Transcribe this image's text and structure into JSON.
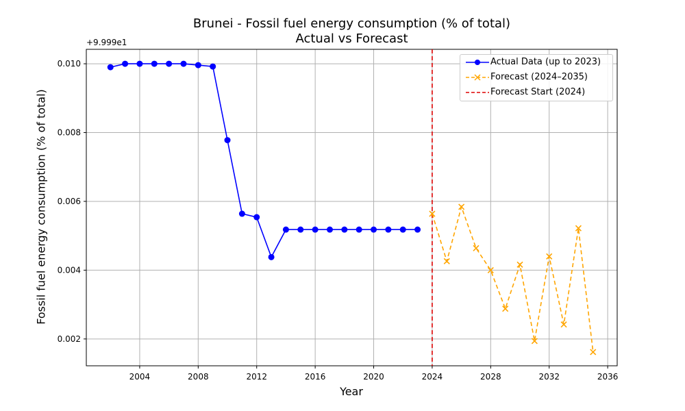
{
  "chart_data": {
    "type": "line",
    "title": "Brunei - Fossil fuel energy consumption (% of total)",
    "subtitle": "Actual vs Forecast",
    "xlabel": "Year",
    "ylabel": "Fossil fuel energy consumption (% of total)",
    "y_offset_label": "+9.999e1",
    "xlim": [
      2000.35,
      2036.65
    ],
    "ylim": [
      0.00122,
      0.01042
    ],
    "x_ticks": [
      2004,
      2008,
      2012,
      2016,
      2020,
      2024,
      2028,
      2032,
      2036
    ],
    "y_ticks": [
      0.002,
      0.004,
      0.006,
      0.008,
      0.01
    ],
    "y_tick_labels": [
      "0.002",
      "0.004",
      "0.006",
      "0.008",
      "0.010"
    ],
    "grid": true,
    "legend_position": "top-right",
    "series": [
      {
        "name": "Actual Data (up to 2023)",
        "color": "#0000ff",
        "style": "solid",
        "marker": "circle",
        "x": [
          2002,
          2003,
          2004,
          2005,
          2006,
          2007,
          2008,
          2009,
          2010,
          2011,
          2012,
          2013,
          2014,
          2015,
          2016,
          2017,
          2018,
          2019,
          2020,
          2021,
          2022,
          2023
        ],
        "y": [
          0.0099,
          0.01,
          0.01,
          0.01,
          0.01,
          0.01,
          0.00996,
          0.00992,
          0.00778,
          0.00564,
          0.00554,
          0.00438,
          0.00518,
          0.00518,
          0.00518,
          0.00518,
          0.00518,
          0.00518,
          0.00518,
          0.00518,
          0.00518,
          0.00518
        ]
      },
      {
        "name": "Forecast (2024–2035)",
        "color": "#ffa500",
        "style": "dashed",
        "marker": "x",
        "x": [
          2024,
          2025,
          2026,
          2027,
          2028,
          2029,
          2030,
          2031,
          2032,
          2033,
          2034,
          2035
        ],
        "y": [
          0.00564,
          0.00426,
          0.00584,
          0.00464,
          0.004,
          0.00288,
          0.00416,
          0.00194,
          0.0044,
          0.00242,
          0.00522,
          0.00162
        ]
      }
    ],
    "vline": {
      "name": "Forecast Start (2024)",
      "x": 2024,
      "color": "#dd0000",
      "style": "dashed"
    }
  }
}
